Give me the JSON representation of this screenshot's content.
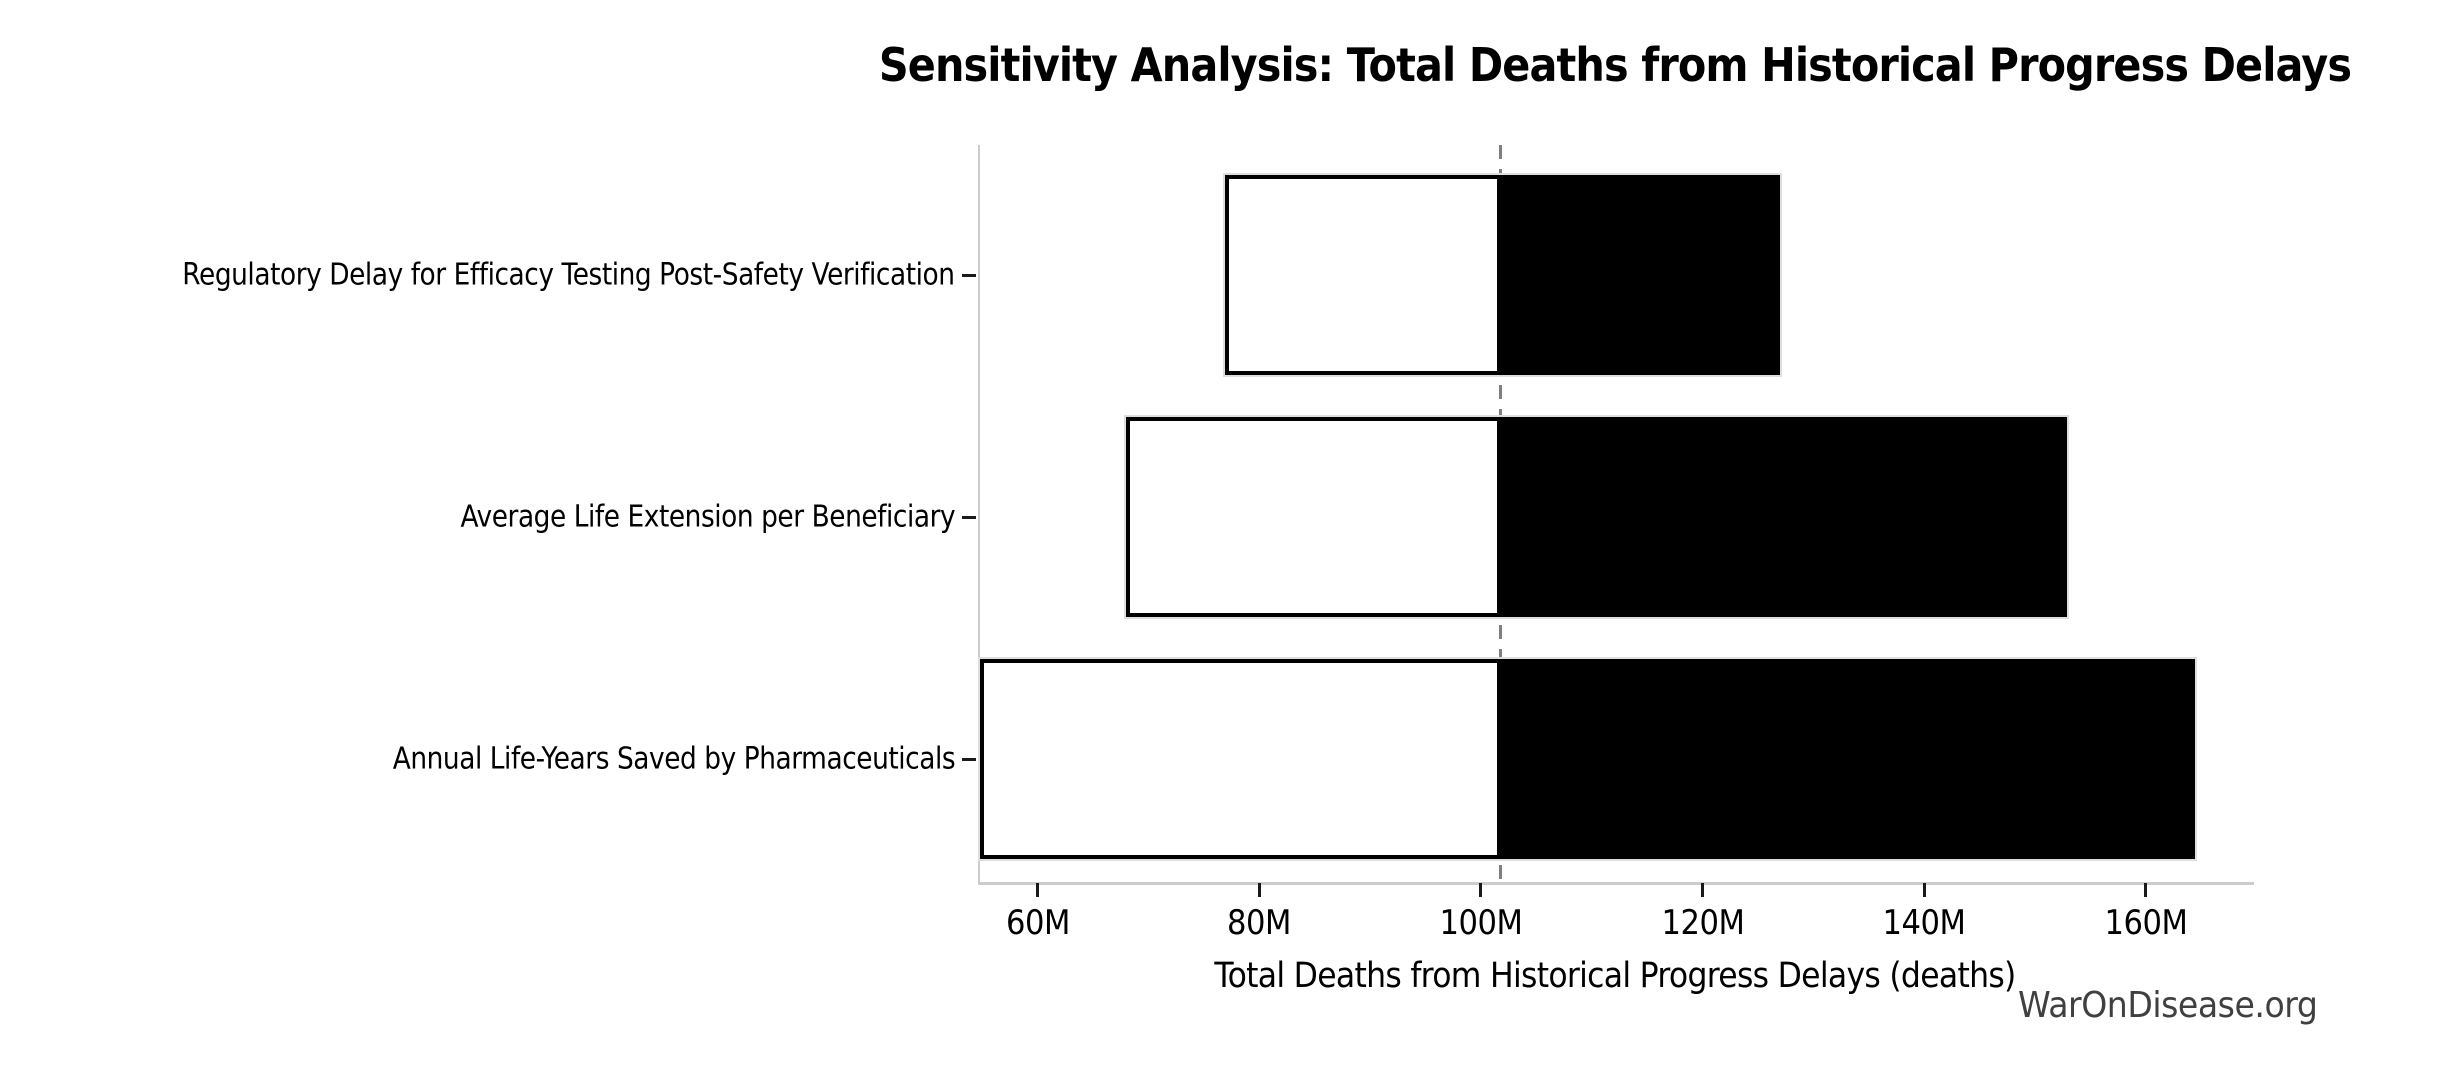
{
  "title": "Sensitivity Analysis: Total Deaths from Historical Progress Delays",
  "watermark": "WarOnDisease.org",
  "colors": {
    "background": "#ffffff",
    "bar_low_fill": "#ffffff",
    "bar_high_fill": "#000000",
    "bar_border": "#000000",
    "bar_outer_edge": "#dedede",
    "spine": "#cccccc",
    "tick": "#1a1a1a",
    "baseline_dash": "#7f7f7f",
    "text": "#000000",
    "watermark_text": "#404040"
  },
  "chart_data": {
    "type": "bar",
    "subtype": "tornado-sensitivity",
    "orientation": "horizontal",
    "title": "Sensitivity Analysis: Total Deaths from Historical Progress Delays",
    "xlabel": "Total Deaths from Historical Progress Delays (deaths)",
    "ylabel": "",
    "unit": "millions of deaths",
    "baseline_value": 101.6,
    "categories": [
      "Regulatory Delay for Efficacy Testing Post-Safety Verification",
      "Average Life Extension per Beneficiary",
      "Annual Life-Years Saved by Pharmaceuticals"
    ],
    "series": [
      {
        "name": "low_estimate",
        "values": [
          76.7,
          67.8,
          54.6
        ]
      },
      {
        "name": "high_estimate",
        "values": [
          126.8,
          152.7,
          164.3
        ]
      }
    ],
    "x_ticks": [
      {
        "value": 60,
        "label": "60M"
      },
      {
        "value": 80,
        "label": "80M"
      },
      {
        "value": 100,
        "label": "100M"
      },
      {
        "value": 120,
        "label": "120M"
      },
      {
        "value": 140,
        "label": "140M"
      },
      {
        "value": 160,
        "label": "160M"
      }
    ],
    "xlim": [
      54.6,
      169.6
    ],
    "grid": false,
    "legend": "none",
    "baseline_style": "vertical dashed gray line at baseline_value",
    "bar_encoding": "white segment = baseline to low estimate, black segment = baseline to high estimate"
  }
}
